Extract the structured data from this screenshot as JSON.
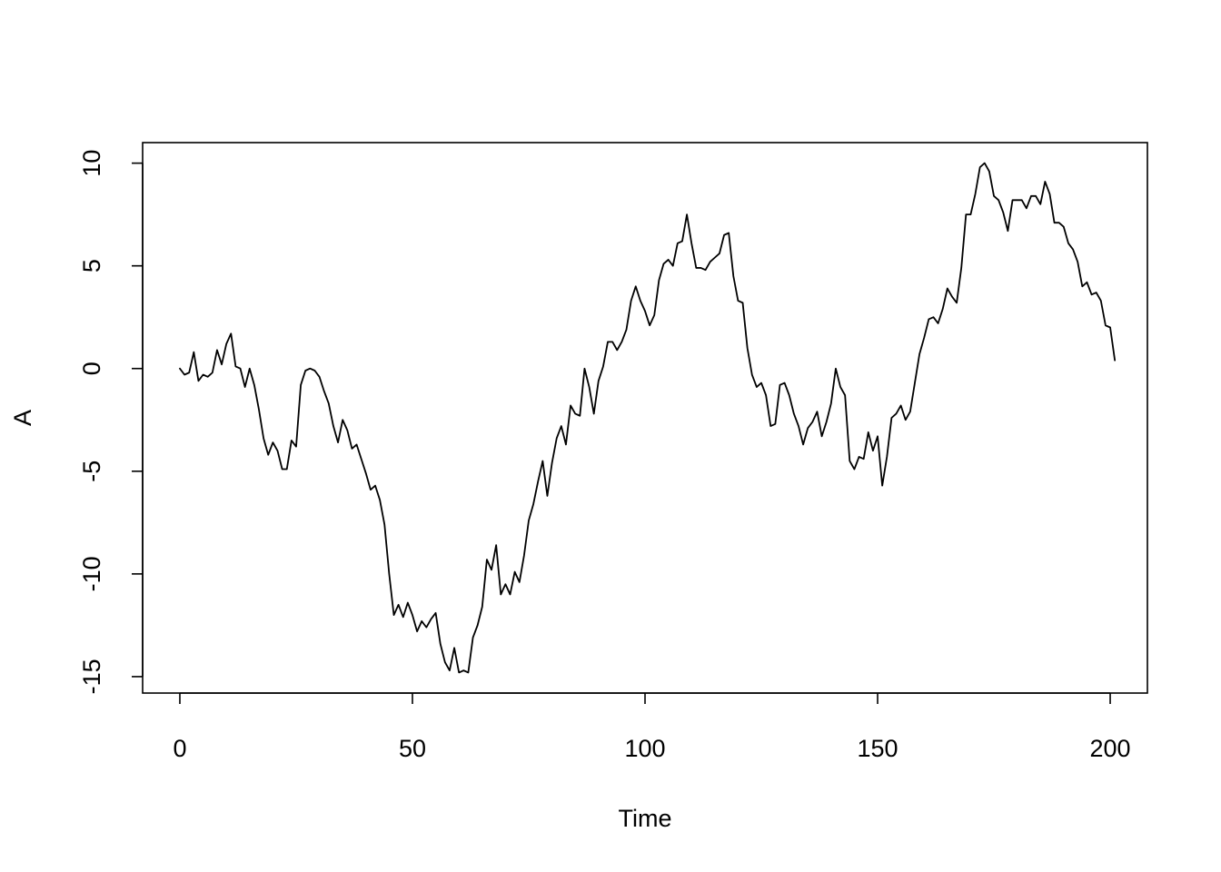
{
  "chart_data": {
    "type": "line",
    "title": "",
    "xlabel": "Time",
    "ylabel": "A",
    "xlim": [
      -8,
      208
    ],
    "ylim": [
      -15.8,
      11
    ],
    "x_ticks": [
      0,
      50,
      100,
      150,
      200
    ],
    "x_tick_labels": [
      "0",
      "50",
      "100",
      "150",
      "200"
    ],
    "y_ticks": [
      -15,
      -10,
      -5,
      0,
      5,
      10
    ],
    "y_tick_labels": [
      "-15",
      "-10",
      "-5",
      "0",
      "5",
      "10"
    ],
    "grid": false,
    "legend": "none",
    "colors": {
      "line": "#000000",
      "axes": "#000000",
      "background": "#ffffff"
    },
    "series": [
      {
        "x_start": 0,
        "x_step": 1,
        "values": [
          0.0,
          -0.3,
          -0.2,
          0.8,
          -0.6,
          -0.3,
          -0.4,
          -0.2,
          0.9,
          0.2,
          1.2,
          1.7,
          0.1,
          0.0,
          -0.9,
          0.0,
          -0.8,
          -2.0,
          -3.4,
          -4.2,
          -3.6,
          -4.0,
          -4.9,
          -4.9,
          -3.5,
          -3.8,
          -0.8,
          -0.1,
          0.0,
          -0.1,
          -0.4,
          -1.1,
          -1.7,
          -2.8,
          -3.6,
          -2.5,
          -3.0,
          -3.9,
          -3.7,
          -4.4,
          -5.1,
          -5.9,
          -5.7,
          -6.4,
          -7.6,
          -10.0,
          -12.0,
          -11.5,
          -12.1,
          -11.4,
          -12.0,
          -12.8,
          -12.3,
          -12.6,
          -12.2,
          -11.9,
          -13.4,
          -14.3,
          -14.7,
          -13.6,
          -14.8,
          -14.7,
          -14.8,
          -13.1,
          -12.5,
          -11.6,
          -9.3,
          -9.8,
          -8.6,
          -11.0,
          -10.5,
          -11.0,
          -9.9,
          -10.4,
          -9.1,
          -7.4,
          -6.6,
          -5.5,
          -4.5,
          -6.2,
          -4.6,
          -3.4,
          -2.8,
          -3.7,
          -1.8,
          -2.2,
          -2.3,
          0.0,
          -0.9,
          -2.2,
          -0.6,
          0.1,
          1.3,
          1.3,
          0.9,
          1.3,
          1.9,
          3.3,
          4.0,
          3.3,
          2.8,
          2.1,
          2.6,
          4.3,
          5.1,
          5.3,
          5.0,
          6.1,
          6.2,
          7.5,
          6.1,
          4.9,
          4.9,
          4.8,
          5.2,
          5.4,
          5.6,
          6.5,
          6.6,
          4.5,
          3.3,
          3.2,
          1.0,
          -0.3,
          -0.9,
          -0.7,
          -1.3,
          -2.8,
          -2.7,
          -0.8,
          -0.7,
          -1.3,
          -2.2,
          -2.8,
          -3.7,
          -2.9,
          -2.6,
          -2.1,
          -3.3,
          -2.6,
          -1.7,
          0.0,
          -0.9,
          -1.3,
          -4.5,
          -4.9,
          -4.3,
          -4.4,
          -3.1,
          -4.0,
          -3.3,
          -5.7,
          -4.3,
          -2.4,
          -2.2,
          -1.8,
          -2.5,
          -2.1,
          -0.7,
          0.7,
          1.5,
          2.4,
          2.5,
          2.2,
          2.9,
          3.9,
          3.5,
          3.2,
          4.9,
          7.5,
          7.5,
          8.5,
          9.8,
          10.0,
          9.6,
          8.4,
          8.2,
          7.6,
          6.7,
          8.2,
          8.2,
          8.2,
          7.8,
          8.4,
          8.4,
          8.0,
          9.1,
          8.5,
          7.1,
          7.1,
          6.9,
          6.1,
          5.8,
          5.2,
          4.0,
          4.2,
          3.6,
          3.7,
          3.3,
          2.1,
          2.0,
          0.4
        ]
      }
    ]
  }
}
